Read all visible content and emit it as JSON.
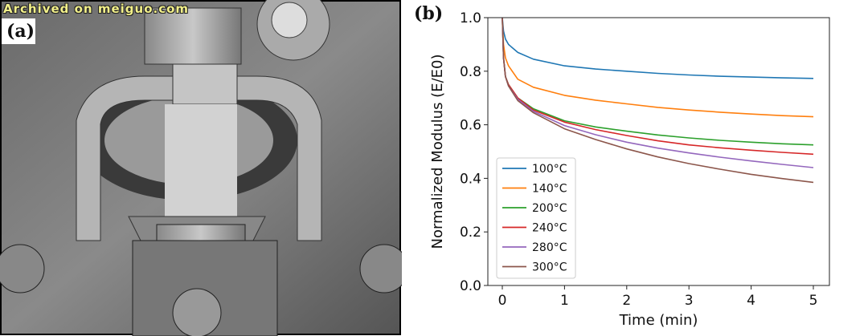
{
  "watermark": "Archived on meiguo.com",
  "panel_a_label": "(a)",
  "panel_b_label": "(b)",
  "chart_data": {
    "type": "line",
    "title": "",
    "xlabel": "Time (min)",
    "ylabel": "Normalized Modulus (E/E0)",
    "xlim": [
      -0.25,
      5.2
    ],
    "ylim": [
      0.0,
      1.0
    ],
    "xticks": [
      0,
      1,
      2,
      3,
      4,
      5
    ],
    "yticks": [
      "0.0",
      "0.2",
      "0.4",
      "0.6",
      "0.8",
      "1.0"
    ],
    "grid": false,
    "legend_position": "lower-left",
    "x": [
      0,
      0.02,
      0.05,
      0.1,
      0.25,
      0.5,
      1,
      1.5,
      2,
      2.5,
      3,
      3.5,
      4,
      4.5,
      5
    ],
    "series": [
      {
        "name": "100°C",
        "color": "#1f77b4",
        "values": [
          1.0,
          0.95,
          0.92,
          0.9,
          0.87,
          0.845,
          0.82,
          0.808,
          0.8,
          0.792,
          0.786,
          0.781,
          0.778,
          0.775,
          0.773
        ]
      },
      {
        "name": "140°C",
        "color": "#ff7f0e",
        "values": [
          1.0,
          0.9,
          0.85,
          0.82,
          0.77,
          0.74,
          0.71,
          0.692,
          0.678,
          0.665,
          0.655,
          0.647,
          0.64,
          0.634,
          0.63
        ]
      },
      {
        "name": "200°C",
        "color": "#2ca02c",
        "values": [
          1.0,
          0.85,
          0.78,
          0.75,
          0.7,
          0.66,
          0.615,
          0.592,
          0.576,
          0.562,
          0.551,
          0.542,
          0.535,
          0.529,
          0.525
        ]
      },
      {
        "name": "240°C",
        "color": "#d62728",
        "values": [
          1.0,
          0.85,
          0.78,
          0.75,
          0.7,
          0.655,
          0.61,
          0.582,
          0.56,
          0.54,
          0.525,
          0.514,
          0.505,
          0.497,
          0.49
        ]
      },
      {
        "name": "280°C",
        "color": "#9467bd",
        "values": [
          1.0,
          0.85,
          0.78,
          0.745,
          0.695,
          0.65,
          0.597,
          0.563,
          0.535,
          0.513,
          0.495,
          0.479,
          0.465,
          0.452,
          0.44
        ]
      },
      {
        "name": "300°C",
        "color": "#8c564b",
        "values": [
          1.0,
          0.85,
          0.78,
          0.745,
          0.69,
          0.645,
          0.585,
          0.545,
          0.51,
          0.48,
          0.455,
          0.434,
          0.415,
          0.399,
          0.385
        ]
      }
    ]
  }
}
